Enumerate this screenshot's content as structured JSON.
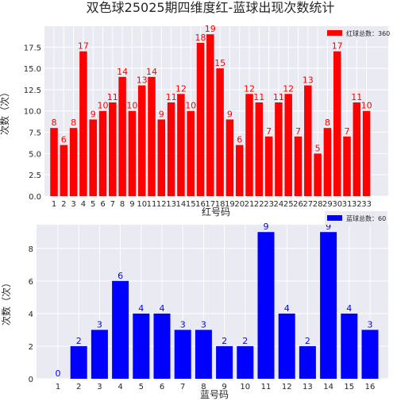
{
  "title": "双色球25025期四维度红-蓝球出现次数统计",
  "chart_data": [
    {
      "type": "bar",
      "title": "双色球25025期四维度红-蓝球出现次数统计",
      "xlabel": "红号码",
      "ylabel": "次数（次）",
      "ylim": [
        0,
        19.95
      ],
      "yticks": [
        "0.0",
        "2.5",
        "5.0",
        "7.5",
        "10.0",
        "12.5",
        "15.0",
        "17.5"
      ],
      "categories": [
        "1",
        "2",
        "3",
        "4",
        "5",
        "6",
        "7",
        "8",
        "9",
        "10",
        "11",
        "12",
        "13",
        "14",
        "15",
        "16",
        "17",
        "18",
        "19",
        "20",
        "21",
        "22",
        "23",
        "24",
        "25",
        "26",
        "27",
        "28",
        "29",
        "30",
        "31",
        "32",
        "33"
      ],
      "values": [
        8,
        6,
        8,
        17,
        9,
        10,
        11,
        14,
        10,
        13,
        14,
        9,
        11,
        12,
        10,
        18,
        19,
        15,
        9,
        6,
        12,
        11,
        7,
        11,
        12,
        7,
        13,
        5,
        8,
        17,
        7,
        11,
        10
      ],
      "data_labels": [
        "8",
        "6",
        "8",
        "17",
        "9",
        "10",
        "11",
        "14",
        "10",
        "13",
        "14",
        "9",
        "11",
        "12",
        "10",
        "18",
        "19",
        "15",
        "9",
        "6",
        "12",
        "11",
        "7",
        "11",
        "12",
        "7",
        "13",
        "5",
        "8",
        "17",
        "7",
        "11",
        "10"
      ],
      "legend": {
        "label": "红球总数：360",
        "position": "top-right"
      },
      "bar_color": "#ff0000",
      "label_color": "#ff0000",
      "grid": true
    },
    {
      "type": "bar",
      "xlabel": "蓝号码",
      "ylabel": "次数（次）",
      "ylim": [
        0,
        9.45
      ],
      "yticks": [
        "0",
        "2",
        "4",
        "6",
        "8"
      ],
      "categories": [
        "1",
        "2",
        "3",
        "4",
        "5",
        "6",
        "7",
        "8",
        "9",
        "10",
        "11",
        "12",
        "13",
        "14",
        "15",
        "16"
      ],
      "values": [
        0,
        2,
        3,
        6,
        4,
        4,
        3,
        3,
        2,
        2,
        9,
        4,
        2,
        9,
        4,
        3
      ],
      "data_labels": [
        "0",
        "2",
        "3",
        "6",
        "4",
        "4",
        "3",
        "3",
        "2",
        "2",
        "9",
        "4",
        "2",
        "9",
        "4",
        "3"
      ],
      "legend": {
        "label": "蓝球总数：60",
        "position": "top-right"
      },
      "bar_color": "#0000ff",
      "label_color": "#0000ff",
      "grid": true
    }
  ],
  "style": {
    "figure_bg": "#ffffff",
    "axes_bg": "#eaeaf2",
    "grid_color": "#ffffff",
    "text_color": "#262626",
    "tick_color": "#262626"
  }
}
